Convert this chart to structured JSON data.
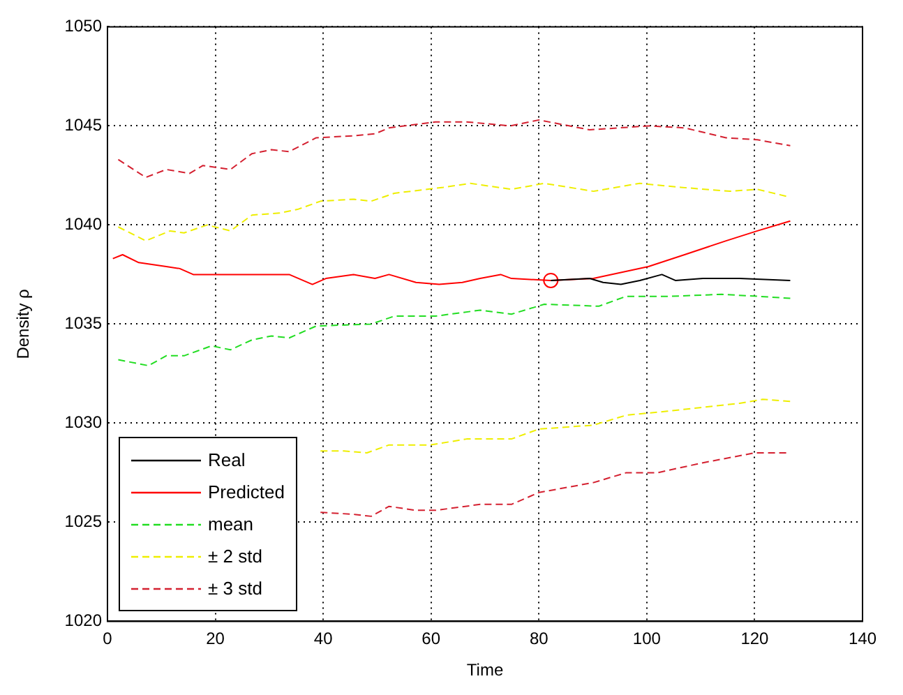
{
  "chart_data": {
    "type": "line",
    "xlabel": "Time",
    "ylabel": "Density ρ",
    "xlim": [
      0,
      140
    ],
    "xticks": [
      0,
      20,
      40,
      60,
      80,
      100,
      120,
      140
    ],
    "ylim": [
      1020,
      1050
    ],
    "yticks": [
      1020,
      1025,
      1030,
      1035,
      1040,
      1045,
      1050
    ],
    "grid": true,
    "legend": "bottom left",
    "marker": "none",
    "series": [
      {
        "name": "Real",
        "color": "#000000",
        "line_style": "solid",
        "x": [
          82.2,
          89.4,
          91.9,
          95.2,
          98.7,
          102.8,
          105.3,
          110.4,
          117.2,
          126.6
        ],
        "values": [
          1037.2,
          1037.3,
          1037.1,
          1037.0,
          1037.2,
          1037.5,
          1037.2,
          1037.3,
          1037.3,
          1037.2
        ]
      },
      {
        "name": "Predicted",
        "color": "#ff0000",
        "line_style": "solid",
        "x": [
          1,
          2.8,
          5.8,
          10.9,
          13.4,
          15.9,
          23.5,
          26.8,
          33.7,
          38,
          40.5,
          45.6,
          49.6,
          52.2,
          57.2,
          61.5,
          65.8,
          69.1,
          72.9,
          74.9,
          82.2,
          90.1,
          100.3,
          107,
          114.7,
          120.5,
          126.6
        ],
        "values": [
          1038.3,
          1038.5,
          1038.1,
          1037.9,
          1037.8,
          1037.5,
          1037.5,
          1037.5,
          1037.5,
          1037.0,
          1037.3,
          1037.5,
          1037.3,
          1037.5,
          1037.1,
          1037.0,
          1037.1,
          1037.3,
          1037.5,
          1037.3,
          1037.2,
          1037.3,
          1037.9,
          1038.5,
          1039.2,
          1039.7,
          1040.2
        ]
      },
      {
        "name": "mean",
        "color": "#22dd22",
        "line_style": "dashed",
        "x": [
          2,
          7.6,
          10.9,
          14.2,
          19.3,
          22.8,
          26.8,
          30.4,
          33.7,
          38.7,
          48.9,
          53.2,
          60.8,
          69.1,
          74.9,
          81,
          91.1,
          96.2,
          104.5,
          113.9,
          120.5,
          126.6
        ],
        "values": [
          1033.2,
          1032.9,
          1033.4,
          1033.4,
          1033.9,
          1033.7,
          1034.2,
          1034.4,
          1034.3,
          1034.9,
          1035.0,
          1035.4,
          1035.4,
          1035.7,
          1035.5,
          1036.0,
          1035.9,
          1036.4,
          1036.4,
          1036.5,
          1036.4,
          1036.3
        ]
      },
      {
        "name": "± 2 std",
        "color": "#eeee00",
        "line_style": "dashed",
        "x": [
          2,
          7.1,
          11.6,
          14.2,
          18.5,
          22.8,
          26.8,
          31.9,
          35.4,
          39.5,
          45.6,
          48.9,
          53.2,
          62.3,
          67.3,
          74.9,
          81,
          90.1,
          98.7,
          106.3,
          115.4,
          120.5,
          126.6
        ],
        "values": [
          1039.9,
          1039.2,
          1039.7,
          1039.6,
          1040.0,
          1039.7,
          1040.5,
          1040.6,
          1040.8,
          1041.2,
          1041.3,
          1041.2,
          1041.6,
          1041.9,
          1042.1,
          1041.8,
          1042.1,
          1041.7,
          1042.1,
          1041.9,
          1041.7,
          1041.8,
          1041.4
        ]
      },
      {
        "color": "#eeee00",
        "line_style": "dashed",
        "x": [
          39.5,
          43.8,
          48.1,
          52.2,
          59.9,
          66.6,
          74.9,
          80,
          90.1,
          96.2,
          103.8,
          110.4,
          117.2,
          121.5,
          126.6
        ],
        "values": [
          1028.6,
          1028.6,
          1028.5,
          1028.9,
          1028.9,
          1029.2,
          1029.2,
          1029.7,
          1029.9,
          1030.4,
          1030.6,
          1030.8,
          1031.0,
          1031.2,
          1031.1
        ]
      },
      {
        "name": "± 3 std",
        "color": "#d42030",
        "line_style": "dashed",
        "x": [
          2,
          7.1,
          10.9,
          15.2,
          17.7,
          22.8,
          26.8,
          30.4,
          33.7,
          38.7,
          45.6,
          49.6,
          52.2,
          60.8,
          66.6,
          74.7,
          80,
          89.4,
          100.3,
          107,
          114.7,
          120.5,
          126.6
        ],
        "values": [
          1043.3,
          1042.4,
          1042.8,
          1042.6,
          1043.0,
          1042.8,
          1043.6,
          1043.8,
          1043.7,
          1044.4,
          1044.5,
          1044.6,
          1044.9,
          1045.2,
          1045.2,
          1045.0,
          1045.3,
          1044.8,
          1045.0,
          1044.9,
          1044.4,
          1044.3,
          1044.0
        ]
      },
      {
        "color": "#d42030",
        "line_style": "dashed",
        "x": [
          39.5,
          45.6,
          48.9,
          52.2,
          57.2,
          60.8,
          69.1,
          74.9,
          80,
          90.1,
          96.2,
          102,
          110.4,
          120,
          126.6
        ],
        "values": [
          1025.5,
          1025.4,
          1025.3,
          1025.8,
          1025.6,
          1025.6,
          1025.9,
          1025.9,
          1026.5,
          1027.0,
          1027.5,
          1027.5,
          1028.0,
          1028.5,
          1028.5
        ]
      },
      {
        "type": "scatter",
        "color": "#ff0000",
        "marker": "circle",
        "x": [
          82.2
        ],
        "values": [
          1037.2
        ]
      }
    ]
  }
}
